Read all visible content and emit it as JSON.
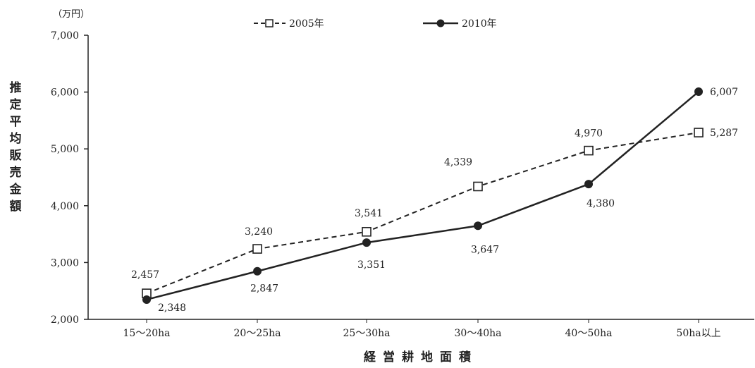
{
  "chart_data": {
    "type": "line",
    "unit": "（万円）",
    "ylabel": "推定平均販売金額",
    "xlabel": "経営耕地面積",
    "categories": [
      "15～20ha",
      "20～25ha",
      "25～30ha",
      "30～40ha",
      "40～50ha",
      "50ha以上"
    ],
    "ylim": [
      2000,
      7000
    ],
    "yticks": [
      2000,
      3000,
      4000,
      5000,
      6000,
      7000
    ],
    "ytick_labels": [
      "2,000",
      "3,000",
      "4,000",
      "5,000",
      "6,000",
      "7,000"
    ],
    "grid": false,
    "legend_position": "top",
    "series": [
      {
        "name": "2005年",
        "style": "dashed",
        "marker": "open-square",
        "color": "#222222",
        "values": [
          2457,
          3240,
          3541,
          4339,
          4970,
          5287
        ],
        "labels": [
          "2,457",
          "3,240",
          "3,541",
          "4,339",
          "4,970",
          "5,287"
        ]
      },
      {
        "name": "2010年",
        "style": "solid",
        "marker": "filled-circle",
        "color": "#222222",
        "values": [
          2348,
          2847,
          3351,
          3647,
          4380,
          6007
        ],
        "labels": [
          "2,348",
          "2,847",
          "3,351",
          "3,647",
          "4,380",
          "6,007"
        ]
      }
    ]
  }
}
